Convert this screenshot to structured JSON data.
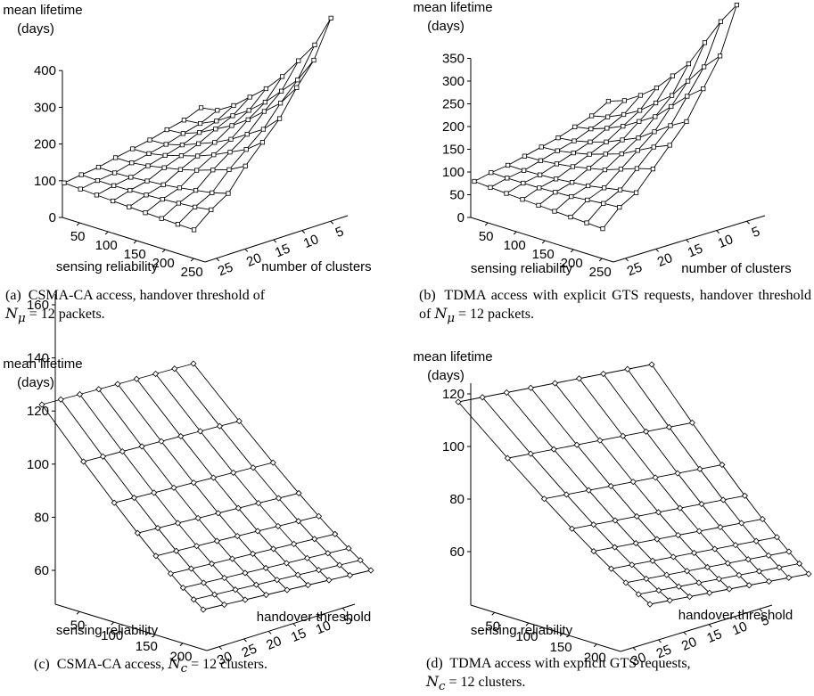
{
  "chart_data": [
    {
      "id": "a",
      "type": "surface",
      "title": "",
      "zlabel": "mean lifetime\n(days)",
      "xlabel": "sensing reliability",
      "ylabel": "number of clusters",
      "z_ticks": [
        0,
        100,
        200,
        300,
        400
      ],
      "x_ticks": [
        50,
        100,
        150,
        200,
        250
      ],
      "y_ticks": [
        5,
        10,
        15,
        20,
        25
      ],
      "marker": "square",
      "grid_size": 9,
      "front_edge_z": [
        90,
        100,
        130,
        170,
        210,
        260,
        320,
        380,
        470
      ],
      "right_edge_z": [
        470,
        370,
        310,
        240,
        190,
        140,
        80,
        50,
        10
      ],
      "caption_tag": "(a)",
      "caption_text": "CSMA-CA access, handover threshold of",
      "caption_math": "N",
      "caption_sub": "μ",
      "caption_tail": " = 12 packets."
    },
    {
      "id": "b",
      "type": "surface",
      "title": "",
      "zlabel": "mean lifetime\n(days)",
      "xlabel": "sensing reliability",
      "ylabel": "number of clusters",
      "z_ticks": [
        0,
        50,
        100,
        150,
        200,
        250,
        300,
        350
      ],
      "x_ticks": [
        50,
        100,
        150,
        200,
        250
      ],
      "y_ticks": [
        5,
        10,
        15,
        20,
        25
      ],
      "marker": "square",
      "grid_size": 9,
      "front_edge_z": [
        80,
        95,
        120,
        150,
        190,
        230,
        290,
        350,
        400
      ],
      "right_edge_z": [
        400,
        300,
        240,
        180,
        140,
        100,
        60,
        40,
        5
      ],
      "caption_tag": "(b)",
      "caption_text": "TDMA access with explicit GTS requests, handover threshold of",
      "caption_math": "N",
      "caption_sub": "μ",
      "caption_tail": " = 12 packets."
    },
    {
      "id": "c",
      "type": "surface",
      "title": "",
      "zlabel": "mean lifetime\n(days)",
      "xlabel": "sensing reliability",
      "ylabel": "handover threshold",
      "z_ticks": [
        60,
        80,
        100,
        120,
        140,
        160
      ],
      "x_ticks": [
        50,
        100,
        150,
        200
      ],
      "y_ticks": [
        5,
        10,
        15,
        20,
        25,
        30
      ],
      "marker": "diamond",
      "grid_size": 9,
      "caption_tag": "(c)",
      "caption_text": "CSMA-CA access,",
      "caption_math": "N",
      "caption_sub": "c",
      "caption_tail": " = 12 clusters."
    },
    {
      "id": "d",
      "type": "surface",
      "title": "",
      "zlabel": "mean lifetime\n(days)",
      "xlabel": "sensing reliability",
      "ylabel": "handover threshold",
      "z_ticks": [
        60,
        80,
        100,
        120
      ],
      "x_ticks": [
        50,
        100,
        150,
        200
      ],
      "y_ticks": [
        5,
        10,
        15,
        20,
        25,
        30
      ],
      "marker": "diamond",
      "grid_size": 9,
      "caption_tag": "(d)",
      "caption_text": "TDMA access with explicit GTS requests,",
      "caption_math": "N",
      "caption_sub": "c",
      "caption_tail": " = 12 clusters."
    }
  ]
}
